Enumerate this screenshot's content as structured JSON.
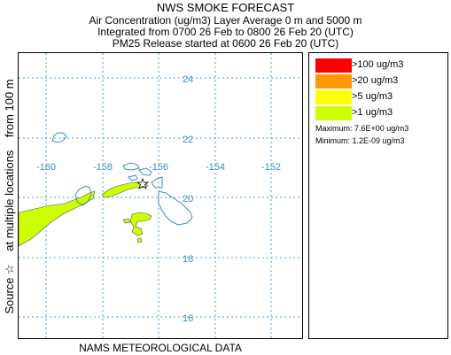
{
  "header": {
    "title": "NWS SMOKE FORECAST",
    "line1": "Air Concentration (ug/m3) Layer Average     0 m and  5000 m",
    "line2": "Integrated from 0700 26 Feb to 0800 26 Feb 20 (UTC)",
    "line3": "PM25 Release started at 0600 26 Feb 20 (UTC)"
  },
  "y_axis": {
    "part1": "Source ☆",
    "part2": "at multiple locations",
    "part3": "from  100 m"
  },
  "footer": "NAMS METEOROLOGICAL DATA",
  "map": {
    "latitude_labels": [
      "24",
      "22",
      "20",
      "18",
      "16"
    ],
    "longitude_labels": [
      "-160",
      "-158",
      "-156",
      "-154",
      "-152"
    ],
    "grid_color": "#4a9fd0",
    "coast_color": "#3a8fc0"
  },
  "legend": {
    "items": [
      {
        "label": ">100 ug/m3",
        "color": "#ff0000"
      },
      {
        "label": ">20 ug/m3",
        "color": "#ff9900"
      },
      {
        "label": ">5 ug/m3",
        "color": "#ffff00"
      },
      {
        "label": ">1 ug/m3",
        "color": "#ccff00"
      }
    ],
    "maximum": "Maximum: 7.6E+00 ug/m3",
    "minimum": "Minimum: 1.2E-09 ug/m3"
  },
  "plume_color": "#ccff00"
}
